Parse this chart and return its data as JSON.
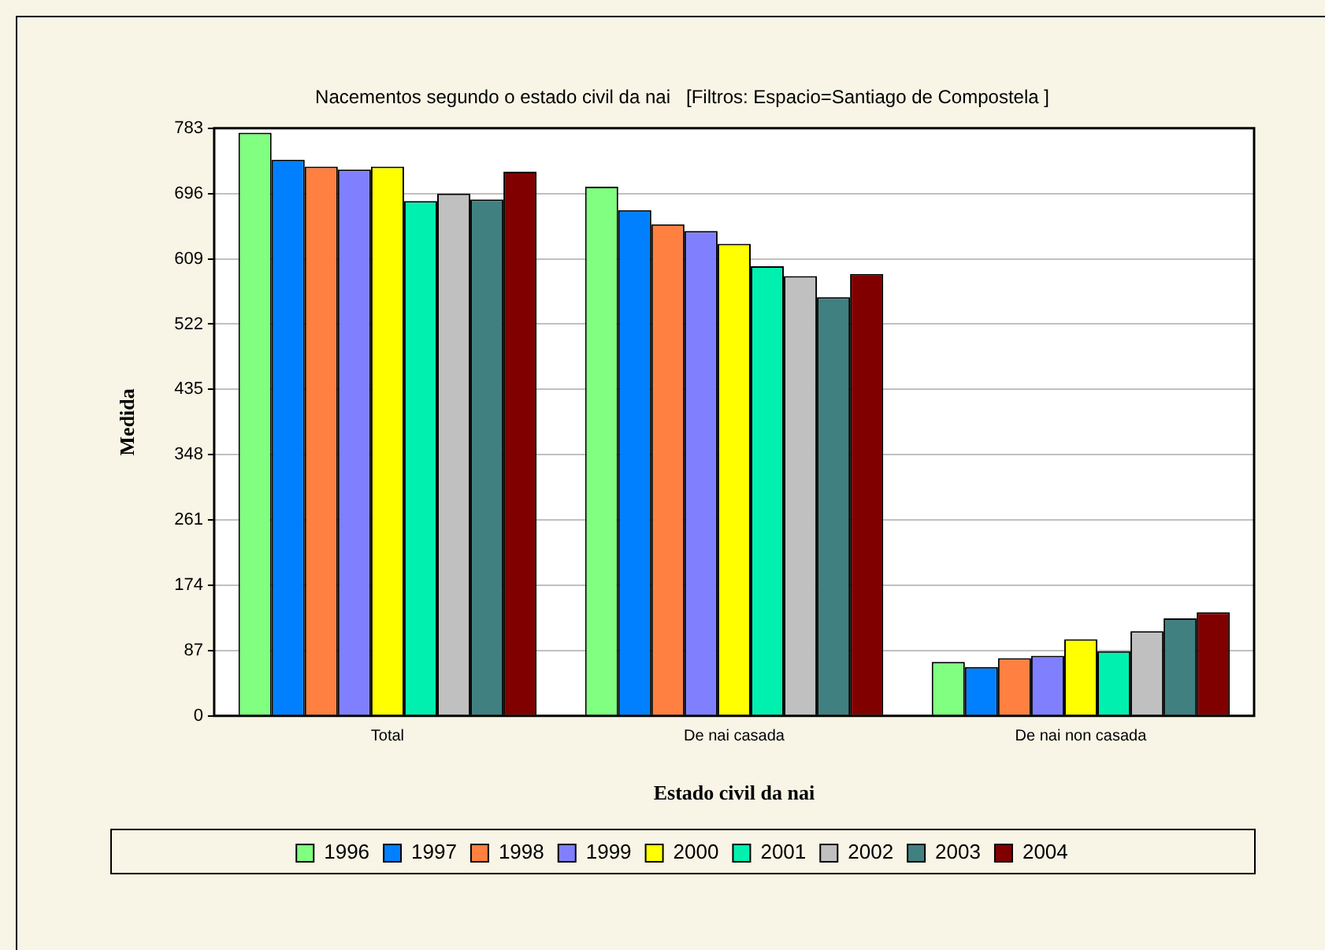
{
  "chart_data": {
    "type": "bar",
    "title": "Nacementos segundo o estado civil da nai   [Filtros: Espacio=Santiago de Compostela ]",
    "xlabel": "Estado civil da nai",
    "ylabel": "Medida",
    "categories": [
      "Total",
      "De nai casada",
      "De nai non casada"
    ],
    "series": [
      {
        "name": "1996",
        "color": "#80ff80",
        "values": [
          777,
          705,
          72
        ]
      },
      {
        "name": "1997",
        "color": "#0080ff",
        "values": [
          741,
          674,
          65
        ]
      },
      {
        "name": "1998",
        "color": "#ff8040",
        "values": [
          732,
          655,
          77
        ]
      },
      {
        "name": "1999",
        "color": "#8080ff",
        "values": [
          728,
          646,
          80
        ]
      },
      {
        "name": "2000",
        "color": "#ffff00",
        "values": [
          732,
          629,
          102
        ]
      },
      {
        "name": "2001",
        "color": "#00f0b0",
        "values": [
          686,
          599,
          86
        ]
      },
      {
        "name": "2002",
        "color": "#c0c0c0",
        "values": [
          696,
          586,
          113
        ]
      },
      {
        "name": "2003",
        "color": "#408080",
        "values": [
          688,
          558,
          130
        ]
      },
      {
        "name": "2004",
        "color": "#800000",
        "values": [
          725,
          589,
          138
        ]
      }
    ],
    "ylim": [
      0,
      783
    ],
    "yticks": [
      0,
      87,
      174,
      261,
      348,
      435,
      522,
      609,
      696,
      783
    ],
    "grid": "y",
    "legend": "bottom"
  }
}
